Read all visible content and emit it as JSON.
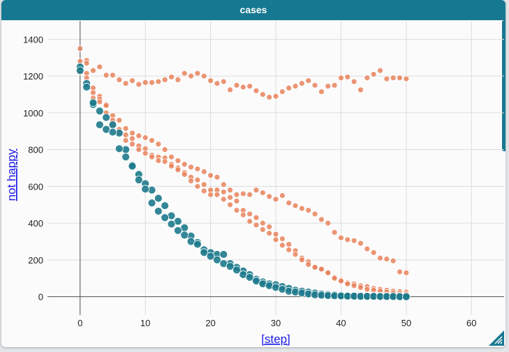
{
  "window": {
    "title": "cases",
    "colors": {
      "titlebar": "#177991",
      "series_teal": "#1d7a8c",
      "series_orange": "#e8825c"
    }
  },
  "chart_data": {
    "type": "scatter",
    "title": "",
    "xlabel": "[step]",
    "ylabel": "not happy",
    "xlim": [
      -5,
      65
    ],
    "ylim": [
      -100,
      1500
    ],
    "xticks": [
      0,
      10,
      20,
      30,
      40,
      50,
      60
    ],
    "yticks": [
      0,
      200,
      400,
      600,
      800,
      1000,
      1200,
      1400
    ],
    "grid": true,
    "legend": "none",
    "series": [
      {
        "color": "#e8825c",
        "x": [
          0,
          1,
          2,
          3,
          4,
          5,
          6,
          7,
          8,
          9,
          10,
          11,
          12,
          13,
          14,
          15,
          16,
          17,
          18,
          19,
          20,
          21,
          22,
          23,
          24,
          25,
          26,
          27,
          28,
          29,
          30,
          31,
          32,
          33,
          34,
          35,
          36,
          37,
          38,
          39,
          40,
          41,
          42,
          43,
          44,
          45,
          46,
          47,
          48,
          49,
          50
        ],
        "y": [
          1350,
          1285,
          1230,
          1250,
          1205,
          1205,
          1180,
          1160,
          1175,
          1155,
          1165,
          1165,
          1170,
          1180,
          1195,
          1180,
          1215,
          1200,
          1215,
          1200,
          1175,
          1160,
          1170,
          1125,
          1150,
          1140,
          1145,
          1120,
          1100,
          1085,
          1090,
          1115,
          1135,
          1145,
          1160,
          1175,
          1150,
          1115,
          1145,
          1150,
          1190,
          1195,
          1170,
          1125,
          1190,
          1210,
          1230,
          1185,
          1190,
          1190,
          1185
        ]
      },
      {
        "color": "#e8825c",
        "x": [
          0,
          1,
          2,
          3,
          4,
          5,
          6,
          7,
          8,
          9,
          10,
          11,
          12,
          13,
          14,
          15,
          16,
          17,
          18,
          19,
          20,
          21,
          22,
          23,
          24,
          25,
          26,
          27,
          28,
          29,
          30,
          31,
          32,
          33,
          34,
          35,
          36,
          37,
          38,
          39,
          40,
          41,
          42,
          43,
          44,
          45,
          46,
          47,
          48,
          49,
          50
        ],
        "y": [
          1280,
          1270,
          1135,
          1090,
          1045,
          985,
          960,
          915,
          890,
          875,
          865,
          850,
          830,
          800,
          760,
          740,
          720,
          705,
          695,
          680,
          660,
          650,
          610,
          580,
          555,
          560,
          555,
          580,
          565,
          545,
          530,
          550,
          510,
          495,
          480,
          470,
          450,
          420,
          400,
          350,
          320,
          310,
          305,
          290,
          260,
          240,
          210,
          205,
          195,
          135,
          130
        ]
      },
      {
        "color": "#e8825c",
        "x": [
          0,
          1,
          2,
          3,
          4,
          5,
          6,
          7,
          8,
          9,
          10,
          11,
          12,
          13,
          14,
          15,
          16,
          17,
          18,
          19,
          20,
          21,
          22,
          23,
          24,
          25,
          26,
          27,
          28,
          29,
          30,
          31,
          32,
          33,
          34,
          35,
          36,
          37,
          38,
          39,
          40,
          41,
          42,
          43,
          44,
          45,
          46,
          47,
          48,
          49,
          50
        ],
        "y": [
          1230,
          1215,
          1080,
          1075,
          1040,
          935,
          895,
          880,
          860,
          820,
          805,
          770,
          760,
          755,
          720,
          700,
          675,
          650,
          635,
          610,
          580,
          580,
          570,
          540,
          520,
          470,
          450,
          430,
          400,
          380,
          340,
          315,
          285,
          250,
          210,
          190,
          160,
          150,
          130,
          105,
          90,
          75,
          70,
          60,
          55,
          45,
          40,
          35,
          30,
          28,
          25
        ]
      },
      {
        "color": "#e8825c",
        "x": [
          0,
          1,
          2,
          3,
          4,
          5,
          6,
          7,
          8,
          9,
          10,
          11,
          12,
          13,
          14,
          15,
          16,
          17,
          18,
          19,
          20,
          21,
          22,
          23,
          24,
          25,
          26,
          27,
          28,
          29,
          30,
          31,
          32,
          33,
          34,
          35,
          36,
          37,
          38,
          39,
          40,
          41,
          42,
          43,
          44,
          45,
          46,
          47,
          48,
          49,
          50
        ],
        "y": [
          1220,
          1190,
          1110,
          1060,
          1000,
          960,
          910,
          850,
          830,
          800,
          780,
          760,
          740,
          735,
          710,
          690,
          665,
          630,
          600,
          575,
          555,
          555,
          530,
          500,
          470,
          445,
          410,
          390,
          365,
          345,
          310,
          280,
          255,
          230,
          200,
          175,
          160,
          150,
          130,
          100,
          85,
          70,
          60,
          50,
          40,
          35,
          30,
          25,
          20,
          18,
          15
        ]
      },
      {
        "color": "#1d7a8c",
        "x": [
          0,
          1,
          2,
          3,
          4,
          5,
          6,
          7,
          8,
          9,
          10,
          11,
          12,
          13,
          14,
          15,
          16,
          17,
          18,
          19,
          20,
          21,
          22,
          23,
          24,
          25,
          26,
          27,
          28,
          29,
          30,
          31,
          32,
          33,
          34,
          35,
          36,
          37,
          38,
          39,
          40,
          41,
          42,
          43,
          44,
          45,
          46,
          47,
          48,
          49,
          50
        ],
        "y": [
          1250,
          1160,
          1045,
          1010,
          975,
          935,
          890,
          800,
          715,
          665,
          615,
          580,
          535,
          495,
          440,
          410,
          375,
          330,
          295,
          255,
          240,
          230,
          230,
          180,
          160,
          140,
          120,
          95,
          80,
          70,
          65,
          55,
          45,
          35,
          30,
          25,
          20,
          15,
          12,
          10,
          8,
          6,
          5,
          5,
          4,
          4,
          3,
          3,
          2,
          2,
          1
        ]
      },
      {
        "color": "#1d7a8c",
        "x": [
          0,
          1,
          2,
          3,
          4,
          5,
          6,
          7,
          8,
          9,
          10,
          11,
          12,
          13,
          14,
          15,
          16,
          17,
          18,
          19,
          20,
          21,
          22,
          23,
          24,
          25,
          26,
          27,
          28,
          29,
          30,
          31,
          32,
          33,
          34,
          35,
          36,
          37,
          38,
          39,
          40,
          41,
          42,
          43,
          44,
          45,
          46,
          47,
          48,
          49,
          50
        ],
        "y": [
          1230,
          1140,
          1055,
          935,
          910,
          895,
          805,
          760,
          710,
          635,
          585,
          510,
          465,
          430,
          395,
          360,
          335,
          300,
          285,
          240,
          220,
          200,
          180,
          165,
          145,
          120,
          105,
          85,
          70,
          60,
          50,
          40,
          30,
          25,
          20,
          15,
          10,
          8,
          6,
          5,
          4,
          3,
          3,
          2,
          2,
          2,
          1,
          1,
          1,
          0,
          0
        ]
      }
    ]
  }
}
